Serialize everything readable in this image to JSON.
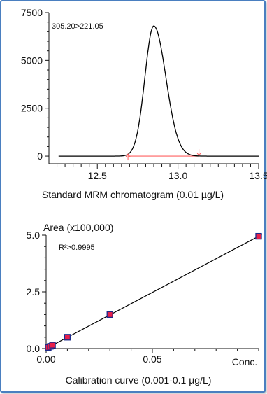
{
  "chart_data": [
    {
      "type": "line",
      "annotation": "305.20>221.05",
      "caption": "Standard MRM chromatogram (0.01 µg/L)",
      "xlim": [
        12.2,
        13.5
      ],
      "ylim": [
        -400,
        7500
      ],
      "x_ticks": [
        "12.5",
        "13.0",
        "13.5"
      ],
      "y_ticks": [
        "0",
        "2500",
        "5000",
        "7500"
      ],
      "peak": {
        "apex_x": 12.85,
        "height": 6800,
        "left_width": 0.055,
        "right_width": 0.075,
        "tail_x": 13.1,
        "tail_y": 80
      },
      "integration_baseline": {
        "x": [
          12.69,
          13.13
        ],
        "y": [
          0,
          0
        ],
        "color": "#ff6060"
      },
      "integration_markers": [
        12.69,
        13.13
      ],
      "x": [
        12.25,
        12.5,
        12.65,
        12.7,
        12.75,
        12.78,
        12.8,
        12.82,
        12.84,
        12.85,
        12.86,
        12.88,
        12.9,
        12.93,
        12.96,
        13.0,
        13.05,
        13.1,
        13.15,
        13.2,
        13.3,
        13.5
      ],
      "y": [
        0,
        0,
        0,
        40,
        900,
        3200,
        5000,
        6100,
        6700,
        6800,
        6700,
        6000,
        4700,
        2800,
        1300,
        450,
        150,
        80,
        20,
        0,
        0,
        0
      ]
    },
    {
      "type": "scatter",
      "ylabel": "Area (x100,000)",
      "xlabel": "Conc.",
      "caption": "Calibration curve (0.001-0.1 µg/L)",
      "annotation": "R²>0.9995",
      "xlim": [
        0,
        0.1
      ],
      "ylim": [
        0,
        5.0
      ],
      "x_ticks": [
        "0.00",
        "0.05"
      ],
      "y_ticks": [
        "0.0",
        "2.5",
        "5.0"
      ],
      "x": [
        0.001,
        0.002,
        0.003,
        0.01,
        0.03,
        0.1
      ],
      "y": [
        0.05,
        0.1,
        0.15,
        0.5,
        1.5,
        4.95
      ],
      "fit": {
        "slope": 49.5,
        "intercept": 0.0
      },
      "marker_fill": "#e8204a",
      "marker_edge": "#1c2a8a"
    }
  ]
}
